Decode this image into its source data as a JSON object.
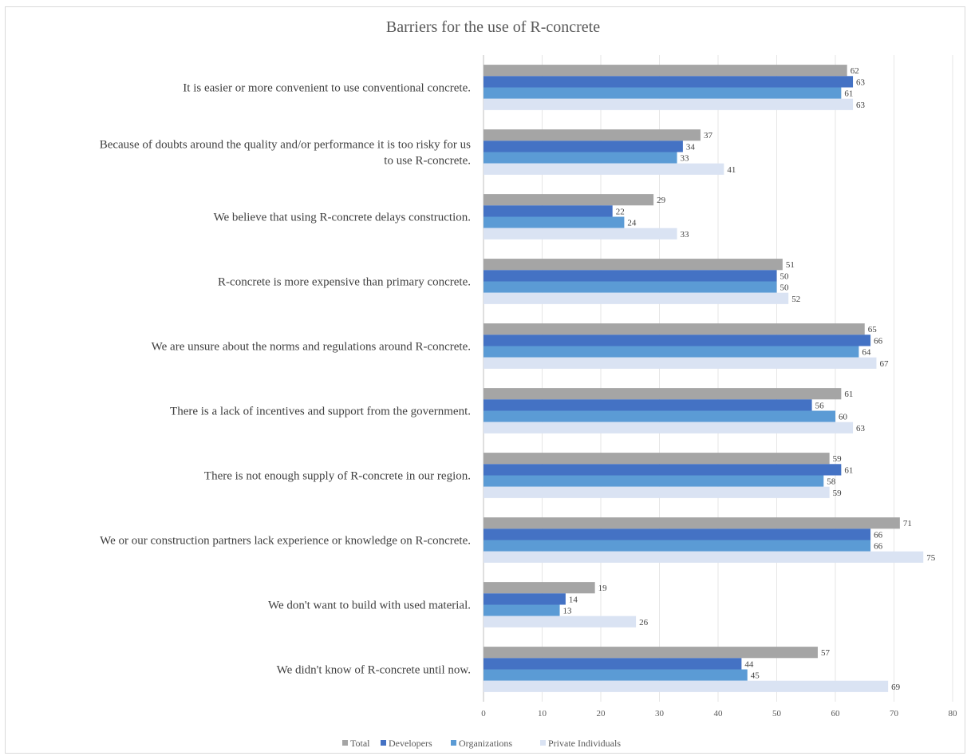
{
  "chart_data": {
    "type": "bar",
    "orientation": "horizontal",
    "title": "Barriers for the use of R-concrete",
    "xlabel": "",
    "ylabel": "",
    "xlim": [
      0,
      80
    ],
    "x_ticks": [
      0,
      10,
      20,
      30,
      40,
      50,
      60,
      70,
      80
    ],
    "grid": true,
    "legend_position": "bottom",
    "categories": [
      [
        "It is easier or more convenient to use conventional concrete."
      ],
      [
        "Because of doubts around the quality and/or performance it is too risky for us",
        "to use R-concrete."
      ],
      [
        "We believe that using R-concrete delays construction."
      ],
      [
        "R-concrete is more expensive than primary concrete."
      ],
      [
        "We are unsure about the norms and regulations around R-concrete."
      ],
      [
        "There is a lack of incentives and support from the government."
      ],
      [
        "There is not enough supply of R-concrete in our region."
      ],
      [
        "We or our construction partners lack experience or knowledge on R-concrete."
      ],
      [
        "We don't want to build with used material."
      ],
      [
        "We didn't know of R-concrete until now."
      ]
    ],
    "series": [
      {
        "name": "Total",
        "color": "#a5a5a5",
        "values": [
          62,
          37,
          29,
          51,
          65,
          61,
          59,
          71,
          19,
          57
        ]
      },
      {
        "name": "Developers",
        "color": "#4472c4",
        "values": [
          63,
          34,
          22,
          50,
          66,
          56,
          61,
          66,
          14,
          44
        ]
      },
      {
        "name": "Organizations",
        "color": "#5b9bd5",
        "values": [
          61,
          33,
          24,
          50,
          64,
          60,
          58,
          66,
          13,
          45
        ]
      },
      {
        "name": "Private Individuals",
        "color": "#dae3f3",
        "values": [
          63,
          41,
          33,
          52,
          67,
          63,
          59,
          75,
          26,
          69
        ]
      }
    ],
    "gridline_color": "#e6e6e6",
    "axis_color": "#bfbfbf"
  }
}
